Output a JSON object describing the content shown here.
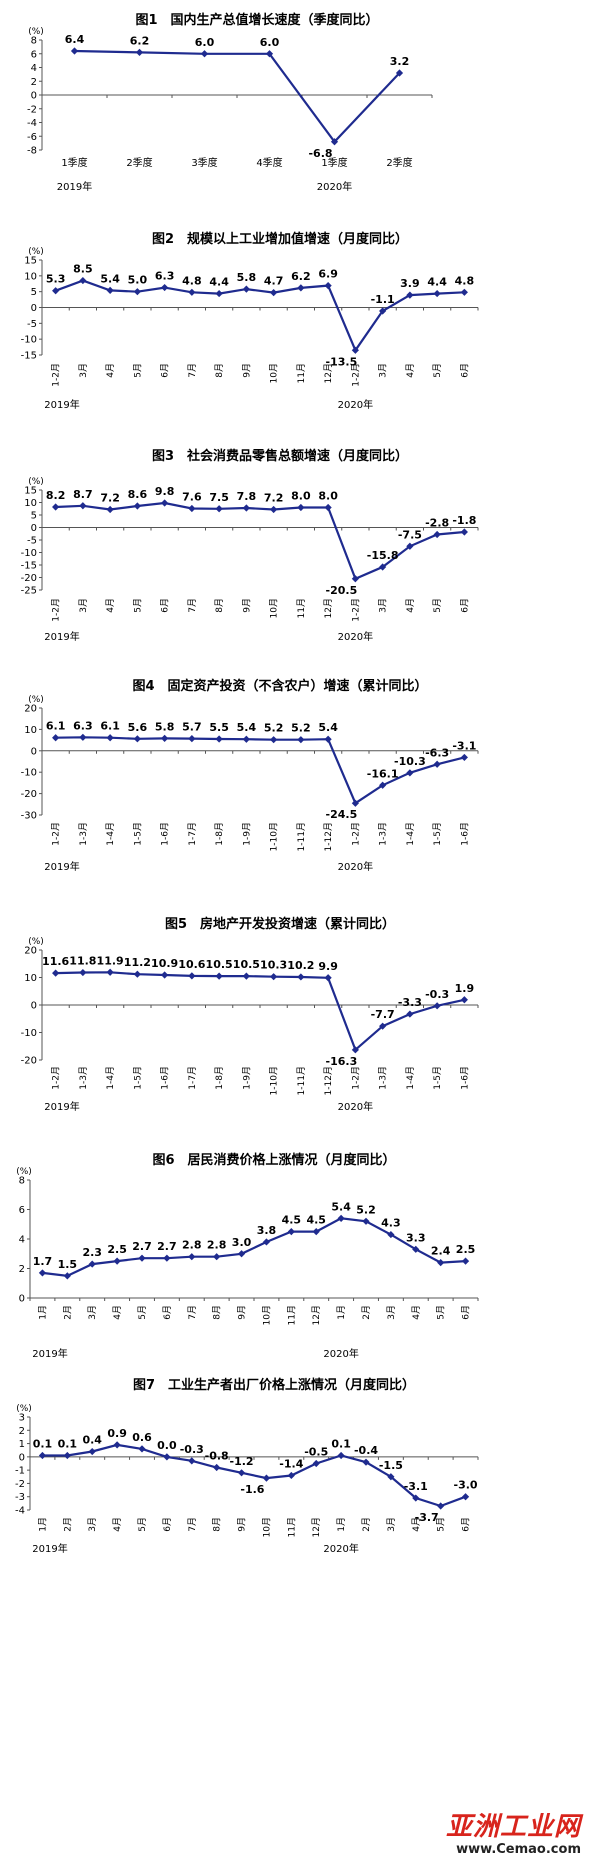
{
  "style": {
    "line_color": "#1f2b8f",
    "text_color": "#000000",
    "watermark_color": "#d8241c"
  },
  "watermark": {
    "text": "亚洲工业网",
    "url": "www.Cemao.com"
  },
  "chart_data": [
    {
      "type": "line",
      "title": "图1　国内生产总值增长速度（季度同比）",
      "ylabel": "(%)",
      "ylim": [
        -8,
        8
      ],
      "yticks": [
        -8,
        -6,
        -4,
        -2,
        0,
        2,
        4,
        6,
        8
      ],
      "categories": [
        "1季度",
        "2季度",
        "3季度",
        "4季度",
        "1季度",
        "2季度"
      ],
      "year_labels": [
        {
          "text": "2019年",
          "index": 0
        },
        {
          "text": "2020年",
          "index": 4
        }
      ],
      "series": [
        {
          "values": [
            6.4,
            6.2,
            6.0,
            6.0,
            -6.8,
            3.2
          ]
        }
      ],
      "labels": [
        "6.4",
        "6.2",
        "6.0",
        "6.0",
        "-6.8",
        "3.2"
      ]
    },
    {
      "type": "line",
      "title": "图2　规模以上工业增加值增速（月度同比）",
      "ylabel": "(%)",
      "ylim": [
        -15,
        15
      ],
      "yticks": [
        -15,
        -10,
        -5,
        0,
        5,
        10,
        15
      ],
      "categories": [
        "1-2月",
        "3月",
        "4月",
        "5月",
        "6月",
        "7月",
        "8月",
        "9月",
        "10月",
        "11月",
        "12月",
        "1-2月",
        "3月",
        "4月",
        "5月",
        "6月"
      ],
      "year_labels": [
        {
          "text": "2019年",
          "index": 0
        },
        {
          "text": "2020年",
          "index": 11
        }
      ],
      "series": [
        {
          "values": [
            5.3,
            8.5,
            5.4,
            5.0,
            6.3,
            4.8,
            4.4,
            5.8,
            4.7,
            6.2,
            6.9,
            -13.5,
            -1.1,
            3.9,
            4.4,
            4.8
          ]
        }
      ],
      "labels": [
        "5.3",
        "8.5",
        "5.4",
        "5.0",
        "6.3",
        "4.8",
        "4.4",
        "5.8",
        "4.7",
        "6.2",
        "6.9",
        "-13.5",
        "-1.1",
        "3.9",
        "4.4",
        "4.8"
      ]
    },
    {
      "type": "line",
      "title": "图3　社会消费品零售总额增速（月度同比）",
      "ylabel": "(%)",
      "ylim": [
        -25,
        15
      ],
      "yticks": [
        -25,
        -20,
        -15,
        -10,
        -5,
        0,
        5,
        10,
        15
      ],
      "categories": [
        "1-2月",
        "3月",
        "4月",
        "5月",
        "6月",
        "7月",
        "8月",
        "9月",
        "10月",
        "11月",
        "12月",
        "1-2月",
        "3月",
        "4月",
        "5月",
        "6月"
      ],
      "year_labels": [
        {
          "text": "2019年",
          "index": 0
        },
        {
          "text": "2020年",
          "index": 11
        }
      ],
      "series": [
        {
          "values": [
            8.2,
            8.7,
            7.2,
            8.6,
            9.8,
            7.6,
            7.5,
            7.8,
            7.2,
            8.0,
            8.0,
            -20.5,
            -15.8,
            -7.5,
            -2.8,
            -1.8
          ]
        }
      ],
      "labels": [
        "8.2",
        "8.7",
        "7.2",
        "8.6",
        "9.8",
        "7.6",
        "7.5",
        "7.8",
        "7.2",
        "8.0",
        "8.0",
        "-20.5",
        "-15.8",
        "-7.5",
        "-2.8",
        "-1.8"
      ]
    },
    {
      "type": "line",
      "title": "图4　固定资产投资（不含农户）增速（累计同比）",
      "ylabel": "(%)",
      "ylim": [
        -30,
        20
      ],
      "yticks": [
        -30,
        -20,
        -10,
        0,
        10,
        20
      ],
      "categories": [
        "1-2月",
        "1-3月",
        "1-4月",
        "1-5月",
        "1-6月",
        "1-7月",
        "1-8月",
        "1-9月",
        "1-10月",
        "1-11月",
        "1-12月",
        "1-2月",
        "1-3月",
        "1-4月",
        "1-5月",
        "1-6月"
      ],
      "year_labels": [
        {
          "text": "2019年",
          "index": 0
        },
        {
          "text": "2020年",
          "index": 11
        }
      ],
      "series": [
        {
          "values": [
            6.1,
            6.3,
            6.1,
            5.6,
            5.8,
            5.7,
            5.5,
            5.4,
            5.2,
            5.2,
            5.4,
            -24.5,
            -16.1,
            -10.3,
            -6.3,
            -3.1
          ]
        }
      ],
      "labels": [
        "6.1",
        "6.3",
        "6.1",
        "5.6",
        "5.8",
        "5.7",
        "5.5",
        "5.4",
        "5.2",
        "5.2",
        "5.4",
        "-24.5",
        "-16.1",
        "-10.3",
        "-6.3",
        "-3.1"
      ]
    },
    {
      "type": "line",
      "title": "图5　房地产开发投资增速（累计同比）",
      "ylabel": "(%)",
      "ylim": [
        -20,
        20
      ],
      "yticks": [
        -20,
        -10,
        0,
        10,
        20
      ],
      "categories": [
        "1-2月",
        "1-3月",
        "1-4月",
        "1-5月",
        "1-6月",
        "1-7月",
        "1-8月",
        "1-9月",
        "1-10月",
        "1-11月",
        "1-12月",
        "1-2月",
        "1-3月",
        "1-4月",
        "1-5月",
        "1-6月"
      ],
      "year_labels": [
        {
          "text": "2019年",
          "index": 0
        },
        {
          "text": "2020年",
          "index": 11
        }
      ],
      "series": [
        {
          "values": [
            11.6,
            11.8,
            11.9,
            11.2,
            10.9,
            10.6,
            10.5,
            10.5,
            10.3,
            10.2,
            9.9,
            -16.3,
            -7.7,
            -3.3,
            -0.3,
            1.9
          ]
        }
      ],
      "labels": [
        "11.6",
        "11.8",
        "11.9",
        "11.2",
        "10.9",
        "10.6",
        "10.5",
        "10.5",
        "10.3",
        "10.2",
        "9.9",
        "-16.3",
        "-7.7",
        "-3.3",
        "-0.3",
        "1.9"
      ]
    },
    {
      "type": "line",
      "title": "图6　居民消费价格上涨情况（月度同比）",
      "ylabel": "(%)",
      "ylim": [
        0,
        8
      ],
      "yticks": [
        0,
        2,
        4,
        6,
        8
      ],
      "categories": [
        "1月",
        "2月",
        "3月",
        "4月",
        "5月",
        "6月",
        "7月",
        "8月",
        "9月",
        "10月",
        "11月",
        "12月",
        "1月",
        "2月",
        "3月",
        "4月",
        "5月",
        "6月"
      ],
      "year_labels": [
        {
          "text": "2019年",
          "index": 0
        },
        {
          "text": "2020年",
          "index": 12
        }
      ],
      "series": [
        {
          "values": [
            1.7,
            1.5,
            2.3,
            2.5,
            2.7,
            2.7,
            2.8,
            2.8,
            3.0,
            3.8,
            4.5,
            4.5,
            5.4,
            5.2,
            4.3,
            3.3,
            2.4,
            2.5
          ]
        }
      ],
      "labels": [
        "1.7",
        "1.5",
        "2.3",
        "2.5",
        "2.7",
        "2.7",
        "2.8",
        "2.8",
        "3.0",
        "3.8",
        "4.5",
        "4.5",
        "5.4",
        "5.2",
        "4.3",
        "3.3",
        "2.4",
        "2.5"
      ]
    },
    {
      "type": "line",
      "title": "图7　工业生产者出厂价格上涨情况（月度同比）",
      "ylabel": "(%)",
      "ylim": [
        -4,
        3
      ],
      "yticks": [
        -4,
        -3,
        -2,
        -1,
        0,
        1,
        2,
        3
      ],
      "categories": [
        "1月",
        "2月",
        "3月",
        "4月",
        "5月",
        "6月",
        "7月",
        "8月",
        "9月",
        "10月",
        "11月",
        "12月",
        "1月",
        "2月",
        "3月",
        "4月",
        "5月",
        "6月"
      ],
      "year_labels": [
        {
          "text": "2019年",
          "index": 0
        },
        {
          "text": "2020年",
          "index": 12
        }
      ],
      "series": [
        {
          "values": [
            0.1,
            0.1,
            0.4,
            0.9,
            0.6,
            0.0,
            -0.3,
            -0.8,
            -1.2,
            -1.6,
            -1.4,
            -0.5,
            0.1,
            -0.4,
            -1.5,
            -3.1,
            -3.7,
            -3.0
          ]
        }
      ],
      "labels": [
        "0.1",
        "0.1",
        "0.4",
        "0.9",
        "0.6",
        "0.0",
        "-0.3",
        "-0.8",
        "-1.2",
        "-1.6",
        "-1.4",
        "-0.5",
        "0.1",
        "-0.4",
        "-1.5",
        "-3.1",
        "-3.7",
        "-3.0"
      ]
    }
  ]
}
